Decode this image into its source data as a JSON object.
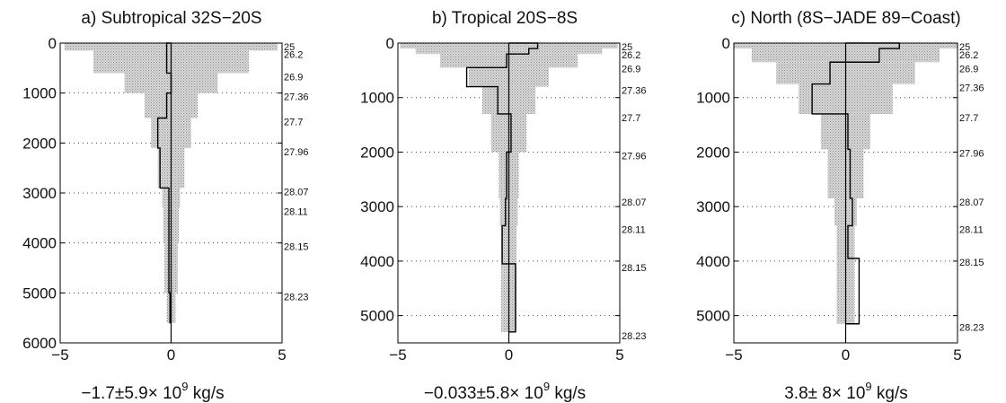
{
  "chart_data": [
    {
      "type": "bar",
      "title": "a) Subtropical 32S−20S",
      "xlabel": {
        "pre": "−1.7±5.9× 10",
        "exp": "9",
        "post": " kg/s"
      },
      "xlim": [
        -5,
        5
      ],
      "ylim": [
        0,
        6000
      ],
      "yticks": [
        0,
        1000,
        2000,
        3000,
        4000,
        5000,
        6000
      ],
      "xticks": [
        -5,
        0,
        5
      ],
      "xticklabels": [
        "−5",
        "0",
        "5"
      ],
      "density_levels": [
        {
          "label": "25",
          "depth": 0
        },
        {
          "label": "26.2",
          "depth": 150
        },
        {
          "label": "26.9",
          "depth": 600
        },
        {
          "label": "27.36",
          "depth": 1000
        },
        {
          "label": "27.7",
          "depth": 1500
        },
        {
          "label": "27.96",
          "depth": 2100
        },
        {
          "label": "28.07",
          "depth": 2900
        },
        {
          "label": "28.11",
          "depth": 3300
        },
        {
          "label": "28.15",
          "depth": 4000
        },
        {
          "label": "28.23",
          "depth": 5000
        }
      ],
      "gridlines": [
        1000,
        2000,
        3000,
        4000,
        5000
      ],
      "series": [
        {
          "layers": [
            {
              "top": 0,
              "bottom": 150,
              "value": -0.2,
              "error": 4.8
            },
            {
              "top": 150,
              "bottom": 600,
              "value": -0.2,
              "error": 3.5
            },
            {
              "top": 600,
              "bottom": 1000,
              "value": 0.0,
              "error": 2.1
            },
            {
              "top": 1000,
              "bottom": 1500,
              "value": -0.2,
              "error": 1.2
            },
            {
              "top": 1500,
              "bottom": 2100,
              "value": -0.6,
              "error": 0.9
            },
            {
              "top": 2100,
              "bottom": 2900,
              "value": -0.5,
              "error": 0.6
            },
            {
              "top": 2900,
              "bottom": 3300,
              "value": -0.1,
              "error": 0.4
            },
            {
              "top": 3300,
              "bottom": 4000,
              "value": -0.1,
              "error": 0.35
            },
            {
              "top": 4000,
              "bottom": 5000,
              "value": -0.1,
              "error": 0.3
            },
            {
              "top": 5000,
              "bottom": 5600,
              "value": -0.05,
              "error": 0.2
            }
          ]
        }
      ]
    },
    {
      "type": "bar",
      "title": "b) Tropical 20S−8S",
      "xlabel": {
        "pre": "−0.033±5.8× 10",
        "exp": "9",
        "post": " kg/s"
      },
      "xlim": [
        -5,
        5
      ],
      "ylim": [
        0,
        5500
      ],
      "yticks": [
        0,
        1000,
        2000,
        3000,
        4000,
        5000
      ],
      "xticks": [
        -5,
        0,
        5
      ],
      "xticklabels": [
        "−5",
        "0",
        "5"
      ],
      "density_levels": [
        {
          "label": "25",
          "depth": 0
        },
        {
          "label": "26.2",
          "depth": 150
        },
        {
          "label": "26.9",
          "depth": 400
        },
        {
          "label": "27.36",
          "depth": 800
        },
        {
          "label": "27.7",
          "depth": 1300
        },
        {
          "label": "27.96",
          "depth": 2000
        },
        {
          "label": "28.07",
          "depth": 2850
        },
        {
          "label": "28.11",
          "depth": 3350
        },
        {
          "label": "28.15",
          "depth": 4050
        },
        {
          "label": "28.23",
          "depth": 5300
        }
      ],
      "gridlines": [
        1000,
        2000,
        3000,
        4000,
        5000
      ],
      "series": [
        {
          "layers": [
            {
              "top": 0,
              "bottom": 100,
              "value": 1.3,
              "error": 4.9
            },
            {
              "top": 100,
              "bottom": 200,
              "value": 0.9,
              "error": 4.2
            },
            {
              "top": 200,
              "bottom": 450,
              "value": -0.1,
              "error": 3.1
            },
            {
              "top": 450,
              "bottom": 800,
              "value": -1.9,
              "error": 1.8
            },
            {
              "top": 800,
              "bottom": 1300,
              "value": -0.5,
              "error": 1.2
            },
            {
              "top": 1300,
              "bottom": 2000,
              "value": 0.1,
              "error": 0.8
            },
            {
              "top": 2000,
              "bottom": 2850,
              "value": -0.1,
              "error": 0.45
            },
            {
              "top": 2850,
              "bottom": 3350,
              "value": -0.15,
              "error": 0.4
            },
            {
              "top": 3350,
              "bottom": 4050,
              "value": -0.3,
              "error": 0.35
            },
            {
              "top": 4050,
              "bottom": 5300,
              "value": 0.3,
              "error": 0.35
            }
          ]
        }
      ]
    },
    {
      "type": "bar",
      "title": "c) North (8S−JADE 89−Coast)",
      "xlabel": {
        "pre": "3.8±  8× 10",
        "exp": "9",
        "post": " kg/s"
      },
      "xlim": [
        -5,
        5
      ],
      "ylim": [
        0,
        5500
      ],
      "yticks": [
        0,
        1000,
        2000,
        3000,
        4000,
        5000
      ],
      "xticks": [
        -5,
        0,
        5
      ],
      "xticklabels": [
        "−5",
        "0",
        "5"
      ],
      "density_levels": [
        {
          "label": "25",
          "depth": 0
        },
        {
          "label": "26.2",
          "depth": 150
        },
        {
          "label": "26.9",
          "depth": 400
        },
        {
          "label": "27.36",
          "depth": 750
        },
        {
          "label": "27.7",
          "depth": 1300
        },
        {
          "label": "27.96",
          "depth": 1950
        },
        {
          "label": "28.07",
          "depth": 2850
        },
        {
          "label": "28.11",
          "depth": 3350
        },
        {
          "label": "28.15",
          "depth": 3950
        },
        {
          "label": "28.23",
          "depth": 5150
        }
      ],
      "gridlines": [
        1000,
        2000,
        3000,
        4000,
        5000
      ],
      "series": [
        {
          "layers": [
            {
              "top": 0,
              "bottom": 100,
              "value": 2.4,
              "error": 5.0
            },
            {
              "top": 100,
              "bottom": 350,
              "value": 1.5,
              "error": 4.2
            },
            {
              "top": 350,
              "bottom": 750,
              "value": -0.7,
              "error": 3.1
            },
            {
              "top": 750,
              "bottom": 1300,
              "value": -1.5,
              "error": 2.1
            },
            {
              "top": 1300,
              "bottom": 1950,
              "value": 0.1,
              "error": 1.1
            },
            {
              "top": 1950,
              "bottom": 2850,
              "value": 0.2,
              "error": 0.8
            },
            {
              "top": 2850,
              "bottom": 3350,
              "value": 0.3,
              "error": 0.5
            },
            {
              "top": 3350,
              "bottom": 3950,
              "value": 0.1,
              "error": 0.4
            },
            {
              "top": 3950,
              "bottom": 5150,
              "value": 0.6,
              "error": 0.4
            }
          ]
        }
      ]
    }
  ]
}
